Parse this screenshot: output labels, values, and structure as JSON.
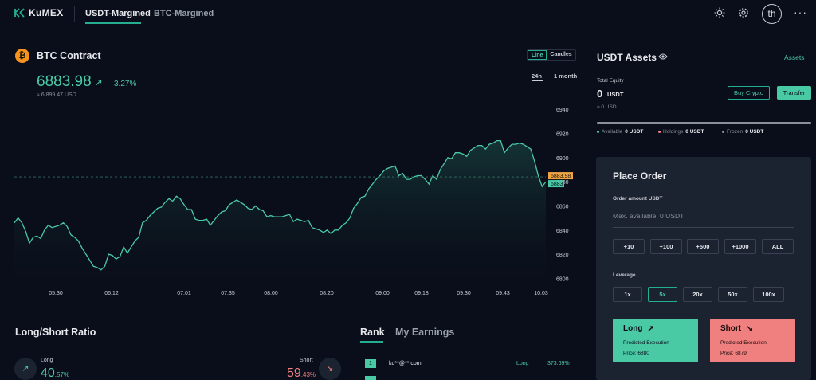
{
  "header": {
    "logo": "KuMEX",
    "tabs": [
      {
        "label": "USDT-Margined",
        "active": true
      },
      {
        "label": "BTC-Margined",
        "active": false
      }
    ],
    "icons": [
      "sun-icon",
      "gear-icon"
    ],
    "avatar": "th",
    "more": "···"
  },
  "contract": {
    "title": "BTC Contract",
    "price": "6883.98",
    "change": "3.27%",
    "usd": "≈ 6,899.47 USD",
    "view_modes": [
      "Line",
      "Candles"
    ],
    "active_view": "Line",
    "ranges": [
      "24h",
      "1 month"
    ],
    "active_range": "24h"
  },
  "chart_data": {
    "type": "area",
    "x_ticks": [
      "05:30",
      "06:12",
      "07:01",
      "07:35",
      "08:00",
      "08:20",
      "09:00",
      "09:18",
      "09:30",
      "09:43",
      "10:03"
    ],
    "y_ticks": [
      6940,
      6920,
      6900,
      6880,
      6860,
      6840,
      6820,
      6800
    ],
    "ylim": [
      6795,
      6948
    ],
    "price_tags": {
      "current": "6883.98",
      "last": "6883"
    },
    "values": [
      6846,
      6850,
      6846,
      6839,
      6829,
      6834,
      6835,
      6833,
      6840,
      6844,
      6842,
      6843,
      6844,
      6846,
      6843,
      6836,
      6834,
      6831,
      6825,
      6820,
      6815,
      6810,
      6809,
      6807,
      6810,
      6820,
      6819,
      6816,
      6818,
      6826,
      6821,
      6826,
      6831,
      6834,
      6846,
      6848,
      6852,
      6855,
      6858,
      6859,
      6863,
      6866,
      6864,
      6868,
      6866,
      6861,
      6857,
      6857,
      6849,
      6848,
      6848,
      6849,
      6844,
      6848,
      6852,
      6855,
      6856,
      6861,
      6863,
      6865,
      6863,
      6861,
      6858,
      6857,
      6860,
      6857,
      6856,
      6851,
      6852,
      6851,
      6851,
      6851,
      6852,
      6853,
      6847,
      6849,
      6848,
      6847,
      6848,
      6842,
      6841,
      6840,
      6838,
      6840,
      6837,
      6840,
      6840,
      6844,
      6846,
      6850,
      6858,
      6862,
      6867,
      6868,
      6874,
      6878,
      6882,
      6885,
      6889,
      6891,
      6892,
      6893,
      6885,
      6887,
      6882,
      6882,
      6884,
      6885,
      6885,
      6882,
      6878,
      6885,
      6882,
      6890,
      6895,
      6900,
      6899,
      6904,
      6904,
      6903,
      6901,
      6906,
      6908,
      6910,
      6910,
      6907,
      6911,
      6912,
      6914,
      6914,
      6904,
      6908,
      6911,
      6911,
      6912,
      6911,
      6909,
      6907,
      6897,
      6885,
      6876,
      6880
    ]
  },
  "long_short": {
    "title": "Long/Short Ratio",
    "long_label": "Long",
    "long_int": "40",
    "long_dec": ".57%",
    "short_label": "Short",
    "short_int": "59",
    "short_dec": ".43%"
  },
  "rank": {
    "tabs": [
      "Rank",
      "My Earnings"
    ],
    "rows": [
      {
        "rank": "1",
        "user": "ko**@**.com",
        "side": "Long",
        "pct": "373.69%"
      }
    ]
  },
  "assets": {
    "title": "USDT Assets",
    "link": "Assets",
    "equity_label": "Total Equity",
    "equity_value": "0",
    "equity_unit": "USDT",
    "equity_usd": "≈ 0 USD",
    "buy_label": "Buy Crypto",
    "transfer_label": "Transfer",
    "legend": [
      {
        "label": "Available",
        "value": "0 USDT",
        "color": "#4ac9a5"
      },
      {
        "label": "Holdings",
        "value": "0 USDT",
        "color": "#f07f7f"
      },
      {
        "label": "Frozen",
        "value": "0 USDT",
        "color": "#8a909b"
      }
    ]
  },
  "order": {
    "title": "Place Order",
    "amount_label": "Order amount USDT",
    "max_available": "Max. available: 0 USDT",
    "amounts": [
      "+10",
      "+100",
      "+500",
      "+1000",
      "ALL"
    ],
    "leverage_label": "Leverage",
    "leverages": [
      "1x",
      "5x",
      "20x",
      "50x",
      "100x"
    ],
    "active_leverage": "5x",
    "long": {
      "title": "Long",
      "sub": "Predicted Execution",
      "price": "Price: 6880"
    },
    "short": {
      "title": "Short",
      "sub": "Predicted Execution",
      "price": "Price: 6879"
    }
  }
}
